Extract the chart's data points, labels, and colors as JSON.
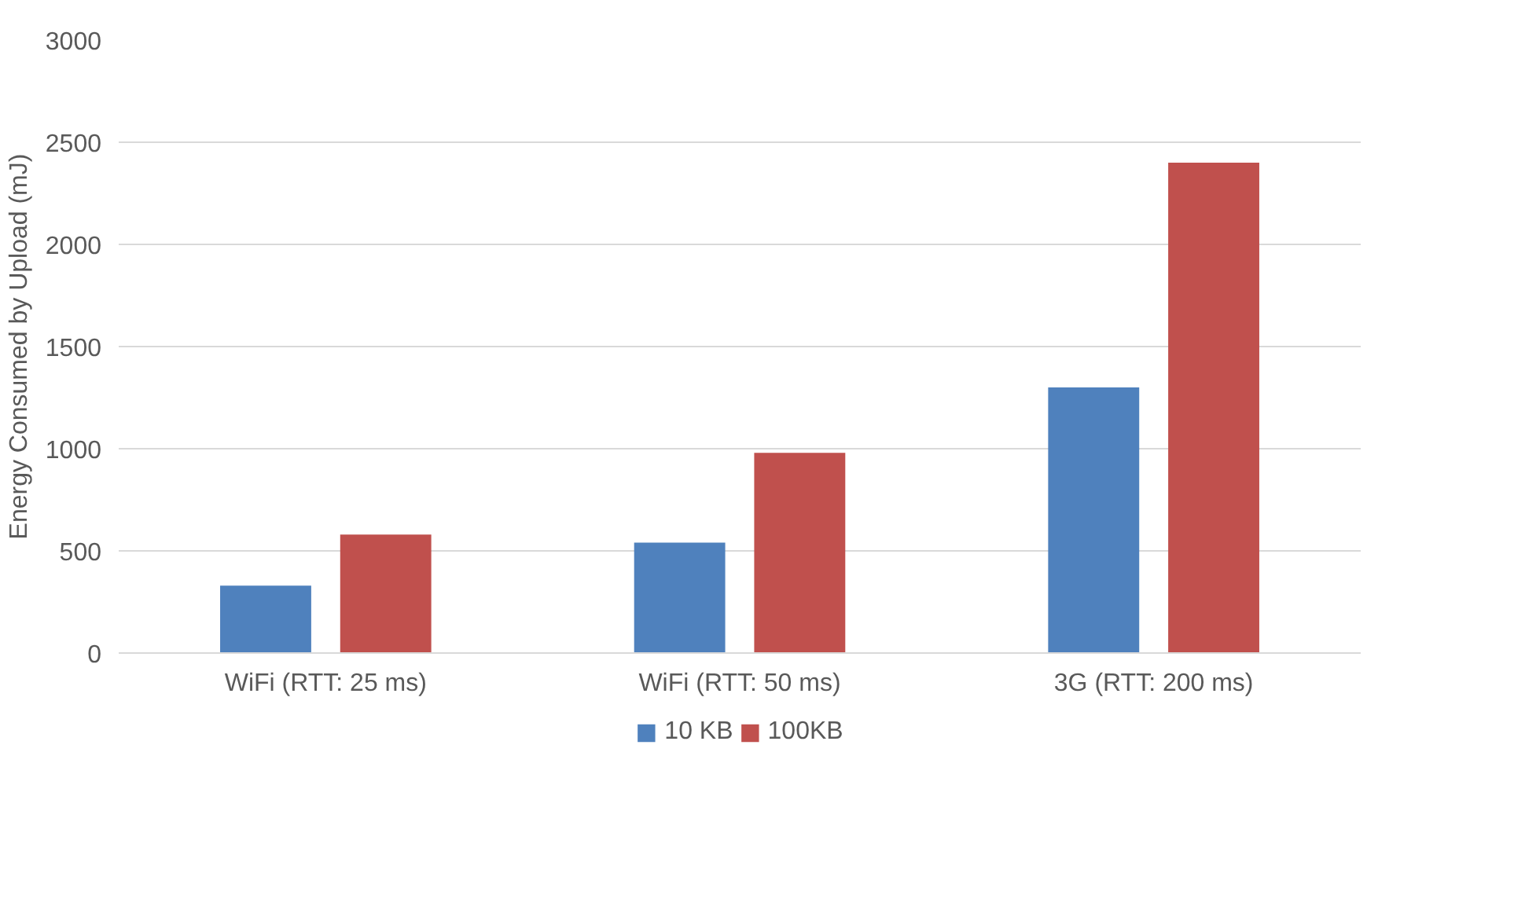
{
  "chart_data": {
    "type": "bar",
    "ylabel": "Energy Consumed by Upload (mJ)",
    "categories": [
      "WiFi (RTT: 25 ms)",
      "WiFi (RTT: 50 ms)",
      "3G (RTT: 200 ms)"
    ],
    "series": [
      {
        "name": "10 KB",
        "color": "#4f81bd",
        "values": [
          330,
          540,
          1300
        ]
      },
      {
        "name": "100KB",
        "color": "#c0504d",
        "values": [
          580,
          980,
          2400
        ]
      }
    ],
    "ylim": [
      0,
      3000
    ],
    "yticks": [
      0,
      500,
      1000,
      1500,
      2000,
      2500,
      3000
    ],
    "grid": "y",
    "legend": "bottom"
  }
}
